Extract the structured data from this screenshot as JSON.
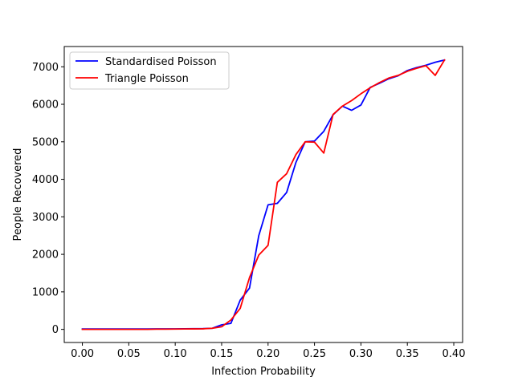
{
  "chart_data": {
    "type": "line",
    "title": "",
    "xlabel": "Infection Probability",
    "ylabel": "People Recovered",
    "xlim": [
      -0.0195,
      0.4095
    ],
    "ylim": [
      -350,
      7540
    ],
    "xticks": [
      0.0,
      0.05,
      0.1,
      0.15,
      0.2,
      0.25,
      0.3,
      0.35,
      0.4
    ],
    "xtick_labels": [
      "0.00",
      "0.05",
      "0.10",
      "0.15",
      "0.20",
      "0.25",
      "0.30",
      "0.35",
      "0.40"
    ],
    "yticks": [
      0,
      1000,
      2000,
      3000,
      4000,
      5000,
      6000,
      7000
    ],
    "ytick_labels": [
      "0",
      "1000",
      "2000",
      "3000",
      "4000",
      "5000",
      "6000",
      "7000"
    ],
    "grid": false,
    "legend_position": "top-left",
    "x": [
      0.0,
      0.01,
      0.02,
      0.03,
      0.04,
      0.05,
      0.06,
      0.07,
      0.08,
      0.09,
      0.1,
      0.11,
      0.12,
      0.13,
      0.14,
      0.15,
      0.16,
      0.17,
      0.18,
      0.19,
      0.2,
      0.21,
      0.22,
      0.23,
      0.24,
      0.25,
      0.26,
      0.27,
      0.28,
      0.29,
      0.3,
      0.31,
      0.32,
      0.33,
      0.34,
      0.35,
      0.36,
      0.37,
      0.38,
      0.39
    ],
    "series": [
      {
        "name": "Standardised Poisson",
        "color": "#0000ff",
        "values": [
          10,
          10,
          10,
          10,
          10,
          10,
          10,
          10,
          12,
          12,
          14,
          15,
          18,
          20,
          30,
          120,
          160,
          780,
          1100,
          2500,
          3320,
          3360,
          3650,
          4450,
          5000,
          5020,
          5280,
          5720,
          5950,
          5840,
          5980,
          6450,
          6560,
          6680,
          6760,
          6900,
          6980,
          7040,
          7120,
          7180
        ]
      },
      {
        "name": "Triangle Poisson",
        "color": "#ff0000",
        "values": [
          0,
          0,
          0,
          0,
          0,
          0,
          0,
          0,
          5,
          5,
          8,
          10,
          12,
          15,
          30,
          70,
          250,
          560,
          1380,
          1980,
          2240,
          3920,
          4150,
          4660,
          5000,
          4990,
          4700,
          5730,
          5950,
          6100,
          6280,
          6440,
          6580,
          6700,
          6770,
          6880,
          6960,
          7030,
          6770,
          7180
        ]
      }
    ]
  }
}
